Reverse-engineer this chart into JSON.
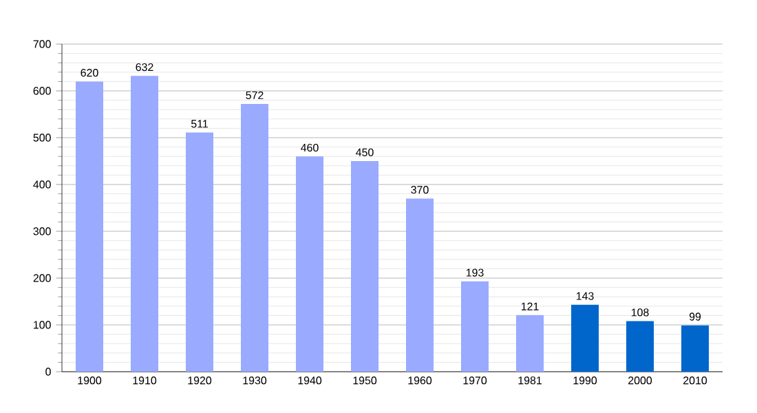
{
  "chart_data": {
    "type": "bar",
    "categories": [
      "1900",
      "1910",
      "1920",
      "1930",
      "1940",
      "1950",
      "1960",
      "1970",
      "1981",
      "1990",
      "2000",
      "2010"
    ],
    "values": [
      620,
      632,
      511,
      572,
      460,
      450,
      370,
      193,
      121,
      143,
      108,
      99
    ],
    "colors": [
      "#99aaff",
      "#99aaff",
      "#99aaff",
      "#99aaff",
      "#99aaff",
      "#99aaff",
      "#99aaff",
      "#99aaff",
      "#99aaff",
      "#0066cc",
      "#0066cc",
      "#0066cc"
    ],
    "ylim": [
      0,
      700
    ],
    "yticks": [
      0,
      100,
      200,
      300,
      400,
      500,
      600,
      700
    ],
    "grid": "y",
    "data_labels": true
  }
}
